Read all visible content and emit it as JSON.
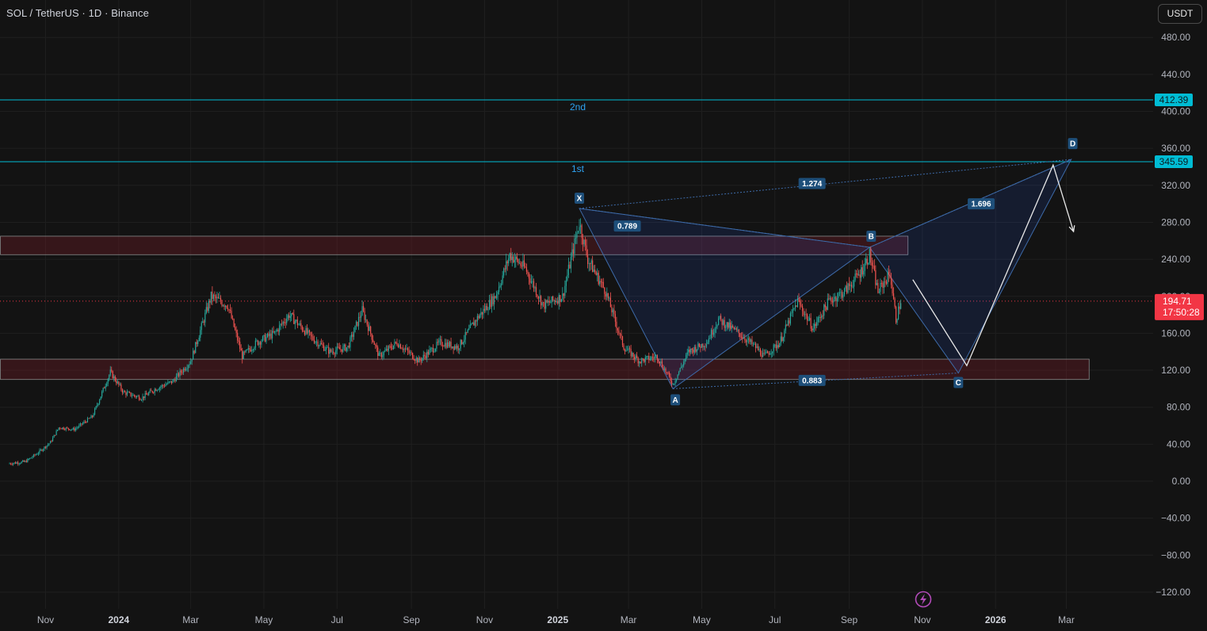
{
  "header": {
    "title": "SOL / TetherUS · 1D · Binance",
    "currency_button": "USDT"
  },
  "chart_data": {
    "type": "candlestick",
    "symbol": "SOL / TetherUS",
    "interval": "1D",
    "exchange": "Binance",
    "ylim": [
      -120,
      500
    ],
    "y_ticks": [
      480,
      440,
      400,
      360,
      320,
      280,
      240,
      200,
      160,
      120,
      80,
      40,
      0,
      -40,
      -80,
      -120
    ],
    "y_tick_labels": [
      "480.00",
      "440.00",
      "400.00",
      "360.00",
      "320.00",
      "280.00",
      "240.00",
      "200.00",
      "160.00",
      "120.00",
      "80.00",
      "40.00",
      "0.00",
      "−40.00",
      "−80.00",
      "−120.00"
    ],
    "x_ticks": [
      {
        "label": "Nov",
        "bold": false
      },
      {
        "label": "2024",
        "bold": true
      },
      {
        "label": "Mar",
        "bold": false
      },
      {
        "label": "May",
        "bold": false
      },
      {
        "label": "Jul",
        "bold": false
      },
      {
        "label": "Sep",
        "bold": false
      },
      {
        "label": "Nov",
        "bold": false
      },
      {
        "label": "2025",
        "bold": true
      },
      {
        "label": "Mar",
        "bold": false
      },
      {
        "label": "May",
        "bold": false
      },
      {
        "label": "Jul",
        "bold": false
      },
      {
        "label": "Sep",
        "bold": false
      },
      {
        "label": "Nov",
        "bold": false
      },
      {
        "label": "2026",
        "bold": true
      },
      {
        "label": "Mar",
        "bold": false
      }
    ],
    "price_path": [
      [
        "2023-10-01",
        19
      ],
      [
        "2023-10-15",
        21
      ],
      [
        "2023-10-25",
        30
      ],
      [
        "2023-11-05",
        42
      ],
      [
        "2023-11-12",
        58
      ],
      [
        "2023-11-25",
        56
      ],
      [
        "2023-12-10",
        70
      ],
      [
        "2023-12-25",
        118
      ],
      [
        "2024-01-05",
        96
      ],
      [
        "2024-01-20",
        90
      ],
      [
        "2024-02-01",
        100
      ],
      [
        "2024-02-15",
        108
      ],
      [
        "2024-03-01",
        130
      ],
      [
        "2024-03-18",
        200
      ],
      [
        "2024-04-01",
        190
      ],
      [
        "2024-04-13",
        135
      ],
      [
        "2024-04-25",
        150
      ],
      [
        "2024-05-10",
        160
      ],
      [
        "2024-05-22",
        180
      ],
      [
        "2024-06-10",
        155
      ],
      [
        "2024-06-25",
        140
      ],
      [
        "2024-07-10",
        145
      ],
      [
        "2024-07-22",
        185
      ],
      [
        "2024-08-05",
        135
      ],
      [
        "2024-08-20",
        150
      ],
      [
        "2024-09-07",
        130
      ],
      [
        "2024-09-25",
        150
      ],
      [
        "2024-10-10",
        145
      ],
      [
        "2024-10-25",
        175
      ],
      [
        "2024-11-10",
        200
      ],
      [
        "2024-11-22",
        245
      ],
      [
        "2024-12-05",
        230
      ],
      [
        "2024-12-20",
        190
      ],
      [
        "2025-01-05",
        200
      ],
      [
        "2025-01-19",
        280
      ],
      [
        "2025-01-26",
        240
      ],
      [
        "2025-02-10",
        205
      ],
      [
        "2025-02-25",
        145
      ],
      [
        "2025-03-10",
        130
      ],
      [
        "2025-03-25",
        135
      ],
      [
        "2025-04-07",
        105
      ],
      [
        "2025-04-20",
        140
      ],
      [
        "2025-05-05",
        150
      ],
      [
        "2025-05-15",
        175
      ],
      [
        "2025-06-01",
        160
      ],
      [
        "2025-06-15",
        145
      ],
      [
        "2025-06-22",
        135
      ],
      [
        "2025-07-05",
        150
      ],
      [
        "2025-07-20",
        195
      ],
      [
        "2025-08-02",
        165
      ],
      [
        "2025-08-15",
        195
      ],
      [
        "2025-08-28",
        205
      ],
      [
        "2025-09-10",
        225
      ],
      [
        "2025-09-18",
        245
      ],
      [
        "2025-09-25",
        205
      ],
      [
        "2025-10-05",
        225
      ],
      [
        "2025-10-10",
        175
      ],
      [
        "2025-10-14",
        194.71
      ]
    ],
    "last_price": {
      "value": 194.71,
      "label": "194.71",
      "countdown": "17:50:28"
    },
    "horizontal_levels": [
      {
        "name": "2nd",
        "value": 412.39,
        "label": "412.39"
      },
      {
        "name": "1st",
        "value": 345.59,
        "label": "345.59"
      }
    ],
    "zones": [
      {
        "from": 245,
        "to": 265,
        "start": "2023-10-01",
        "end": "2025-10-20"
      },
      {
        "from": 110,
        "to": 132,
        "start": "2023-10-01",
        "end": "2026-03-20"
      }
    ],
    "harmonic_pattern": {
      "points": [
        {
          "name": "X",
          "date": "2025-01-19",
          "value": 295
        },
        {
          "name": "A",
          "date": "2025-04-07",
          "value": 100
        },
        {
          "name": "B",
          "date": "2025-09-18",
          "value": 253
        },
        {
          "name": "C",
          "date": "2025-12-01",
          "value": 117
        },
        {
          "name": "D",
          "date": "2026-03-05",
          "value": 348
        }
      ],
      "ratios": [
        {
          "label": "0.789",
          "date": "2025-02-28",
          "value": 276
        },
        {
          "label": "0.883",
          "date": "2025-08-01",
          "value": 109
        },
        {
          "label": "1.274",
          "date": "2025-08-01",
          "value": 322
        },
        {
          "label": "1.696",
          "date": "2025-12-20",
          "value": 300
        }
      ]
    },
    "projection_path": [
      [
        "2025-10-24",
        218
      ],
      [
        "2025-12-08",
        125
      ],
      [
        "2026-02-18",
        342
      ],
      [
        "2026-03-07",
        270
      ]
    ]
  },
  "colors": {
    "background": "#131313",
    "grid": "#1f1f1f",
    "up": "#26a69a",
    "down": "#ef5350",
    "level": "#00bcd4",
    "pattern": "#2962ff",
    "last_price": "#f23645",
    "label_bg": "#1e4f7a"
  },
  "icons": {
    "flash": "lightning-icon"
  }
}
